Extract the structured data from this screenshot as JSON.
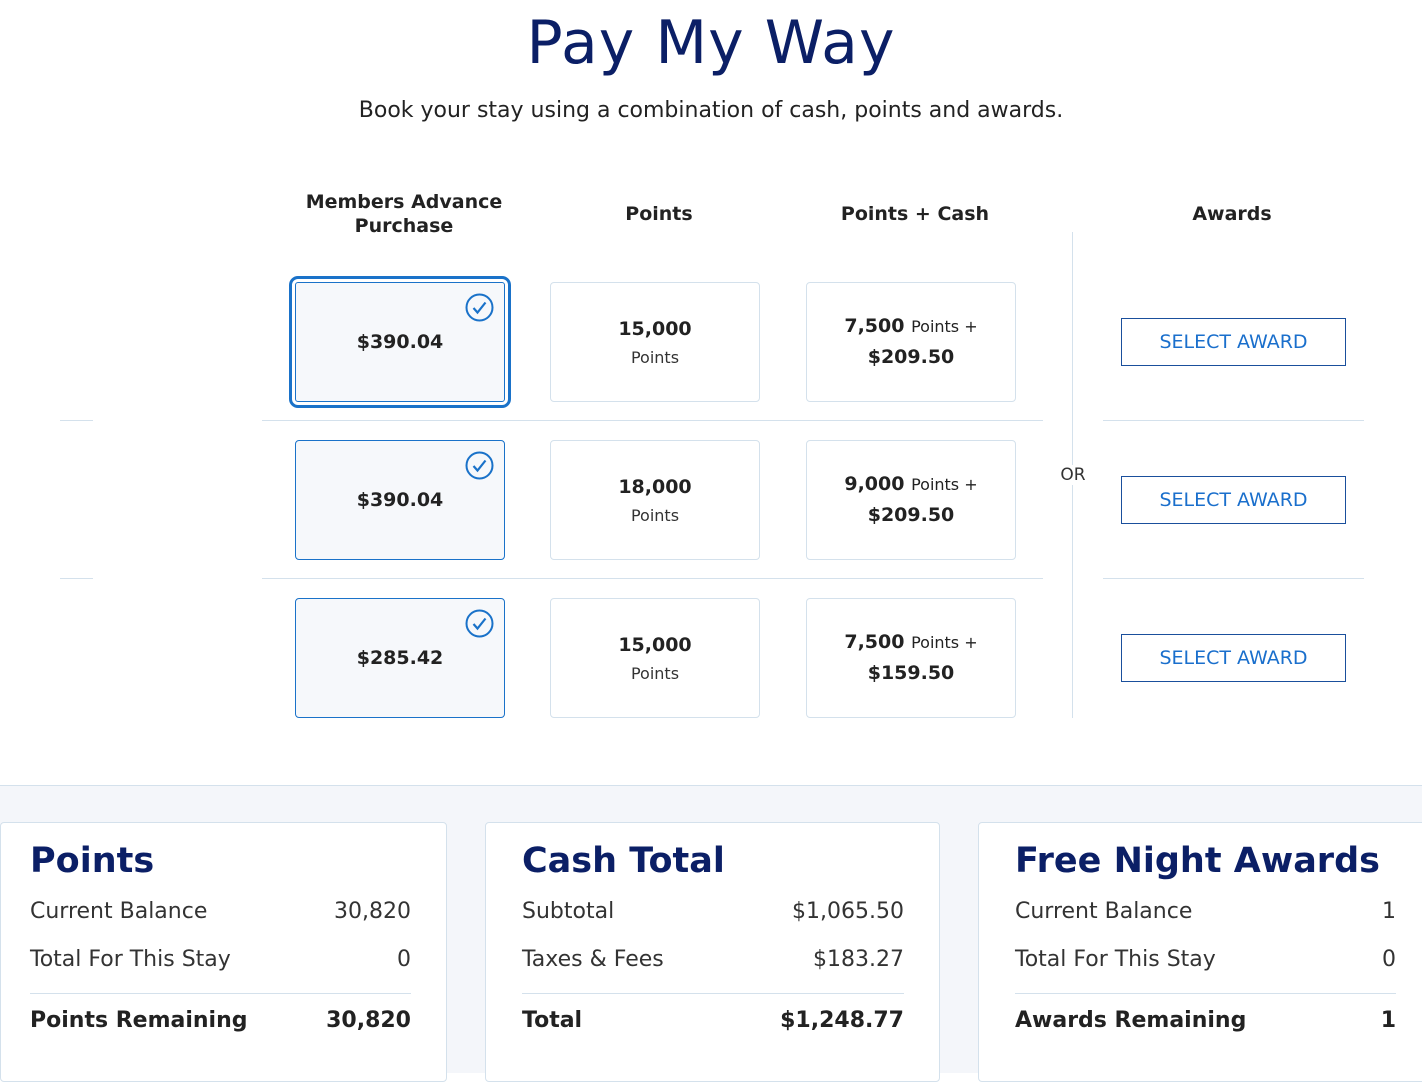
{
  "header": {
    "title": "Pay My Way",
    "subtitle": "Book your stay using a combination of cash, points and awards."
  },
  "columns": [
    "Members Advance Purchase",
    "Points",
    "Points + Cash",
    "Awards"
  ],
  "or_label": "OR",
  "rows": [
    {
      "map_price": "$390.04",
      "map_selected": true,
      "points": "15,000",
      "points_unit": "Points",
      "pc_points": "7,500",
      "pc_unit": "Points +",
      "pc_cash": "$209.50",
      "award_label": "SELECT AWARD"
    },
    {
      "map_price": "$390.04",
      "map_selected": false,
      "points": "18,000",
      "points_unit": "Points",
      "pc_points": "9,000",
      "pc_unit": "Points +",
      "pc_cash": "$209.50",
      "award_label": "SELECT AWARD"
    },
    {
      "map_price": "$285.42",
      "map_selected": false,
      "points": "15,000",
      "points_unit": "Points",
      "pc_points": "7,500",
      "pc_unit": "Points +",
      "pc_cash": "$159.50",
      "award_label": "SELECT AWARD"
    }
  ],
  "summary": {
    "points": {
      "title": "Points",
      "rows": [
        {
          "label": "Current Balance",
          "value": "30,820"
        },
        {
          "label": "Total For This Stay",
          "value": "0"
        }
      ],
      "total": {
        "label": "Points Remaining",
        "value": "30,820"
      }
    },
    "cash": {
      "title": "Cash Total",
      "rows": [
        {
          "label": "Subtotal",
          "value": "$1,065.50"
        },
        {
          "label": "Taxes & Fees",
          "value": "$183.27"
        }
      ],
      "total": {
        "label": "Total",
        "value": "$1,248.77"
      }
    },
    "awards": {
      "title": "Free Night Awards",
      "rows": [
        {
          "label": "Current Balance",
          "value": "1"
        },
        {
          "label": "Total For This Stay",
          "value": "0"
        }
      ],
      "total": {
        "label": "Awards Remaining",
        "value": "1"
      }
    }
  },
  "colors": {
    "navy": "#0b1f66",
    "accent": "#1a72c9",
    "border": "#d4e1ec"
  }
}
